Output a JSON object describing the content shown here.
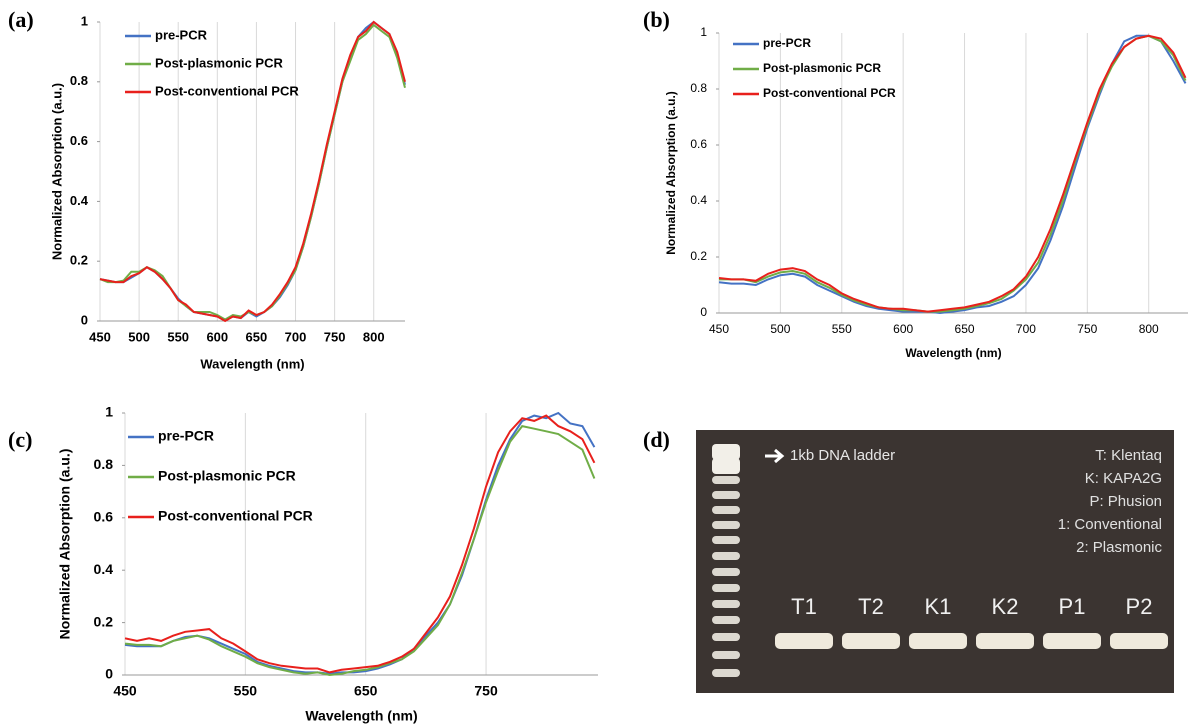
{
  "chart_data": [
    {
      "type": "line",
      "panel": "(a)",
      "x_label": "Wavelength (nm)",
      "y_label": "Normalized Absorption (a.u.)",
      "x": [
        450,
        460,
        470,
        480,
        490,
        500,
        510,
        520,
        530,
        540,
        550,
        560,
        570,
        580,
        590,
        600,
        610,
        620,
        630,
        640,
        650,
        660,
        670,
        680,
        690,
        700,
        710,
        720,
        730,
        740,
        750,
        760,
        770,
        780,
        790,
        800,
        810,
        820,
        830,
        840
      ],
      "series": [
        {
          "name": "pre-PCR",
          "color": "#4472c4",
          "values": [
            0.14,
            0.135,
            0.13,
            0.13,
            0.145,
            0.16,
            0.18,
            0.165,
            0.14,
            0.11,
            0.075,
            0.05,
            0.03,
            0.025,
            0.02,
            0.015,
            0.005,
            0.015,
            0.01,
            0.03,
            0.015,
            0.03,
            0.05,
            0.08,
            0.12,
            0.17,
            0.25,
            0.35,
            0.46,
            0.58,
            0.69,
            0.8,
            0.88,
            0.95,
            0.98,
            1.0,
            0.98,
            0.96,
            0.89,
            0.79
          ]
        },
        {
          "name": "Post-plasmonic PCR",
          "color": "#70ad47",
          "values": [
            0.14,
            0.13,
            0.13,
            0.135,
            0.165,
            0.165,
            0.18,
            0.17,
            0.15,
            0.11,
            0.07,
            0.05,
            0.03,
            0.03,
            0.03,
            0.02,
            0.005,
            0.02,
            0.015,
            0.03,
            0.02,
            0.03,
            0.05,
            0.085,
            0.125,
            0.17,
            0.25,
            0.35,
            0.46,
            0.58,
            0.69,
            0.8,
            0.87,
            0.94,
            0.96,
            0.99,
            0.97,
            0.95,
            0.88,
            0.78
          ]
        },
        {
          "name": "Post-conventional PCR",
          "color": "#e8201c",
          "values": [
            0.14,
            0.135,
            0.13,
            0.13,
            0.15,
            0.16,
            0.18,
            0.165,
            0.14,
            0.11,
            0.07,
            0.055,
            0.03,
            0.025,
            0.02,
            0.015,
            0.0,
            0.015,
            0.01,
            0.035,
            0.02,
            0.03,
            0.055,
            0.09,
            0.13,
            0.18,
            0.26,
            0.36,
            0.47,
            0.59,
            0.7,
            0.81,
            0.89,
            0.95,
            0.97,
            1.0,
            0.98,
            0.96,
            0.9,
            0.8
          ]
        }
      ],
      "xlim": [
        450,
        840
      ],
      "xticks": [
        450,
        500,
        550,
        600,
        650,
        700,
        750,
        800
      ],
      "ylim": [
        0,
        1
      ],
      "yticks": [
        0,
        0.2,
        0.4,
        0.6,
        0.8,
        1
      ],
      "grid": "x"
    },
    {
      "type": "line",
      "panel": "(b)",
      "x_label": "Wavelength (nm)",
      "y_label": "Normalized Absorption (a.u.)",
      "x": [
        450,
        460,
        470,
        480,
        490,
        500,
        510,
        520,
        530,
        540,
        550,
        560,
        570,
        580,
        590,
        600,
        610,
        620,
        630,
        640,
        650,
        660,
        670,
        680,
        690,
        700,
        710,
        720,
        730,
        740,
        750,
        760,
        770,
        780,
        790,
        800,
        810,
        820,
        830
      ],
      "series": [
        {
          "name": "pre-PCR",
          "color": "#4472c4",
          "values": [
            0.11,
            0.105,
            0.105,
            0.1,
            0.12,
            0.135,
            0.14,
            0.13,
            0.1,
            0.08,
            0.06,
            0.04,
            0.025,
            0.015,
            0.01,
            0.005,
            0.005,
            0.005,
            0.0,
            0.005,
            0.01,
            0.02,
            0.025,
            0.04,
            0.06,
            0.1,
            0.16,
            0.26,
            0.38,
            0.52,
            0.66,
            0.78,
            0.89,
            0.97,
            0.99,
            0.99,
            0.97,
            0.9,
            0.82
          ]
        },
        {
          "name": "Post-plasmonic PCR",
          "color": "#70ad47",
          "values": [
            0.12,
            0.12,
            0.12,
            0.11,
            0.13,
            0.145,
            0.15,
            0.14,
            0.11,
            0.09,
            0.065,
            0.045,
            0.03,
            0.02,
            0.015,
            0.01,
            0.01,
            0.005,
            0.005,
            0.01,
            0.015,
            0.025,
            0.035,
            0.05,
            0.08,
            0.12,
            0.18,
            0.28,
            0.4,
            0.54,
            0.67,
            0.79,
            0.88,
            0.95,
            0.98,
            0.99,
            0.97,
            0.92,
            0.83
          ]
        },
        {
          "name": "Post-conventional PCR",
          "color": "#e8201c",
          "values": [
            0.125,
            0.12,
            0.12,
            0.115,
            0.14,
            0.155,
            0.16,
            0.15,
            0.12,
            0.1,
            0.07,
            0.05,
            0.035,
            0.02,
            0.015,
            0.015,
            0.01,
            0.005,
            0.01,
            0.015,
            0.02,
            0.03,
            0.04,
            0.06,
            0.085,
            0.13,
            0.2,
            0.3,
            0.42,
            0.55,
            0.68,
            0.8,
            0.89,
            0.95,
            0.98,
            0.99,
            0.98,
            0.93,
            0.84
          ]
        }
      ],
      "xlim": [
        450,
        832
      ],
      "xticks": [
        450,
        500,
        550,
        600,
        650,
        700,
        750,
        800
      ],
      "ylim": [
        0,
        1
      ],
      "yticks": [
        0,
        0.2,
        0.4,
        0.6,
        0.8,
        1
      ],
      "grid": "x"
    },
    {
      "type": "line",
      "panel": "(c)",
      "x_label": "Wavelength (nm)",
      "y_label": "Normalized Absorption (a.u.)",
      "x": [
        450,
        460,
        470,
        480,
        490,
        500,
        510,
        520,
        530,
        540,
        550,
        560,
        570,
        580,
        590,
        600,
        610,
        620,
        630,
        640,
        650,
        660,
        670,
        680,
        690,
        700,
        710,
        720,
        730,
        740,
        750,
        760,
        770,
        780,
        790,
        800,
        810,
        820,
        830,
        840
      ],
      "series": [
        {
          "name": "pre-PCR",
          "color": "#4472c4",
          "values": [
            0.115,
            0.11,
            0.11,
            0.11,
            0.13,
            0.145,
            0.15,
            0.14,
            0.12,
            0.1,
            0.08,
            0.05,
            0.035,
            0.025,
            0.015,
            0.01,
            0.01,
            0.005,
            0.01,
            0.01,
            0.015,
            0.025,
            0.04,
            0.06,
            0.1,
            0.15,
            0.2,
            0.27,
            0.38,
            0.52,
            0.67,
            0.8,
            0.9,
            0.97,
            0.99,
            0.98,
            1.0,
            0.96,
            0.95,
            0.87
          ]
        },
        {
          "name": "Post-plasmonic PCR",
          "color": "#70ad47",
          "values": [
            0.12,
            0.115,
            0.115,
            0.11,
            0.13,
            0.14,
            0.15,
            0.135,
            0.11,
            0.09,
            0.07,
            0.045,
            0.03,
            0.02,
            0.01,
            0.005,
            0.01,
            0.0,
            0.005,
            0.015,
            0.02,
            0.03,
            0.045,
            0.06,
            0.09,
            0.14,
            0.19,
            0.27,
            0.39,
            0.52,
            0.66,
            0.78,
            0.89,
            0.95,
            0.94,
            0.93,
            0.92,
            0.89,
            0.86,
            0.75
          ]
        },
        {
          "name": "Post-conventional PCR",
          "color": "#e8201c",
          "values": [
            0.14,
            0.13,
            0.14,
            0.13,
            0.15,
            0.165,
            0.17,
            0.175,
            0.14,
            0.12,
            0.09,
            0.06,
            0.045,
            0.035,
            0.03,
            0.025,
            0.025,
            0.01,
            0.02,
            0.025,
            0.03,
            0.035,
            0.05,
            0.07,
            0.1,
            0.16,
            0.22,
            0.3,
            0.42,
            0.56,
            0.72,
            0.85,
            0.93,
            0.98,
            0.97,
            0.99,
            0.95,
            0.93,
            0.9,
            0.81
          ]
        }
      ],
      "xlim": [
        450,
        843
      ],
      "xticks": [
        450,
        550,
        650,
        750
      ],
      "ylim": [
        0,
        1
      ],
      "yticks": [
        0,
        0.2,
        0.4,
        0.6,
        0.8,
        1
      ],
      "grid": "x"
    }
  ],
  "gel": {
    "panel": "(d)",
    "ladder_label": "1kb DNA ladder",
    "key": [
      "T: Klentaq",
      "K: KAPA2G",
      "P: Phusion",
      "1: Conventional",
      "2: Plasmonic"
    ],
    "lanes": [
      "T1",
      "T2",
      "K1",
      "K2",
      "P1",
      "P2"
    ]
  }
}
